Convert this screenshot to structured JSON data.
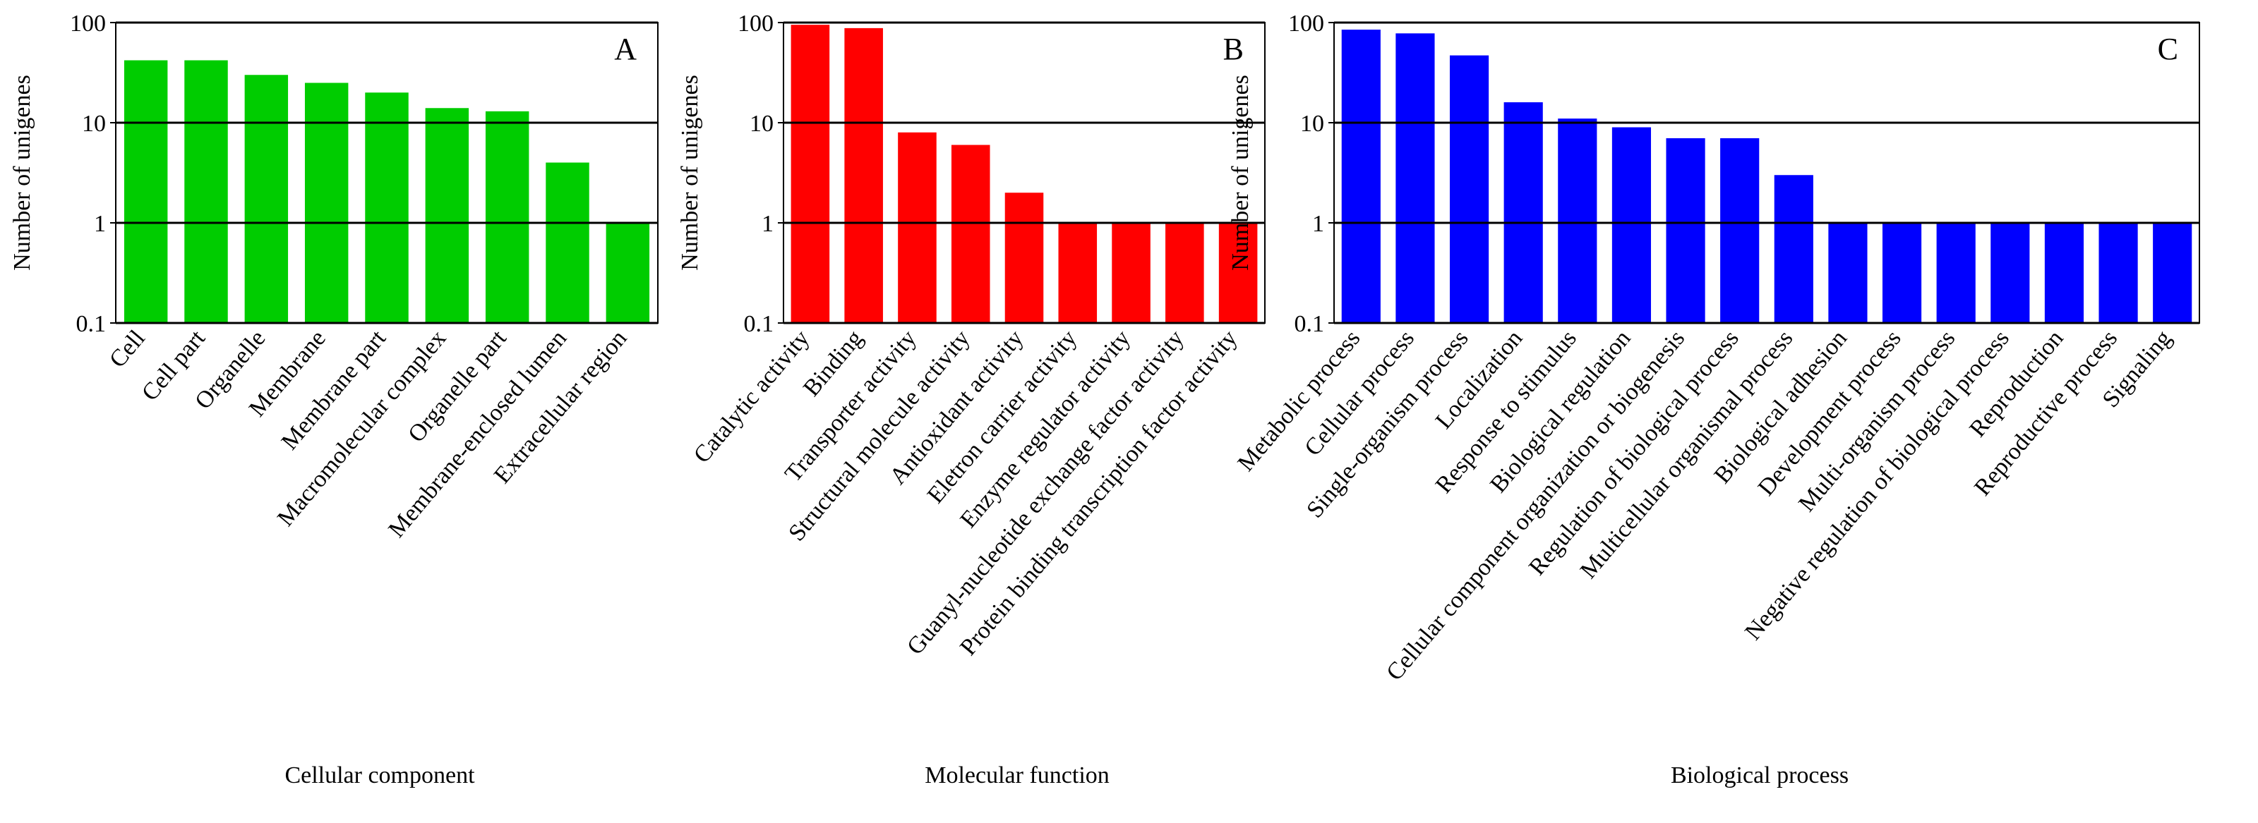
{
  "chart_data": [
    {
      "type": "bar",
      "annotation": "A",
      "xlabel": "Cellular component",
      "ylabel": "Number of unigenes",
      "log_scale": true,
      "grid": true,
      "color": "#00cc00",
      "categories": [
        "Cell",
        "Cell part",
        "Organelle",
        "Membrane",
        "Membrane part",
        "Macromolecular complex",
        "Organelle part",
        "Membrane-enclosed lumen",
        "Extracellular region"
      ],
      "values": [
        42,
        42,
        30,
        25,
        20,
        14,
        13,
        4,
        1
      ],
      "ylim": [
        0.1,
        100
      ],
      "yticks": [
        0.1,
        1,
        10,
        100
      ]
    },
    {
      "type": "bar",
      "annotation": "B",
      "xlabel": "Molecular function",
      "ylabel": "Number of unigenes",
      "log_scale": true,
      "grid": true,
      "color": "#ff0000",
      "categories": [
        "Catalytic activity",
        "Binding",
        "Transporter activity",
        "Structural molecule activity",
        "Antioxidant activity",
        "Eletron carrier activity",
        "Enzyme regulator activity",
        "Guanyl-nucleotide exchange factor activity",
        "Protein binding transcription factor activity"
      ],
      "values": [
        95,
        88,
        8,
        6,
        2,
        1,
        1,
        1,
        1
      ],
      "ylim": [
        0.1,
        100
      ],
      "yticks": [
        0.1,
        1,
        10,
        100
      ]
    },
    {
      "type": "bar",
      "annotation": "C",
      "xlabel": "Biological process",
      "ylabel": "Number of unigenes",
      "log_scale": true,
      "grid": true,
      "color": "#0000ff",
      "categories": [
        "Metabolic process",
        "Cellular process",
        "Single-organism process",
        "Localization",
        "Response to stimulus",
        "Biological regulation",
        "Cellular component organization or biogenesis",
        "Regulation of biological process",
        "Multicellular organismal process",
        "Biological adhesion",
        "Development process",
        "Multi-organism process",
        "Negative regulation of biological process",
        "Reproduction",
        "Reproductive process",
        "Signaling"
      ],
      "values": [
        85,
        78,
        47,
        16,
        11,
        9,
        7,
        7,
        3,
        1,
        1,
        1,
        1,
        1,
        1,
        1
      ],
      "ylim": [
        0.1,
        100
      ],
      "yticks": [
        0.1,
        1,
        10,
        100
      ]
    }
  ]
}
